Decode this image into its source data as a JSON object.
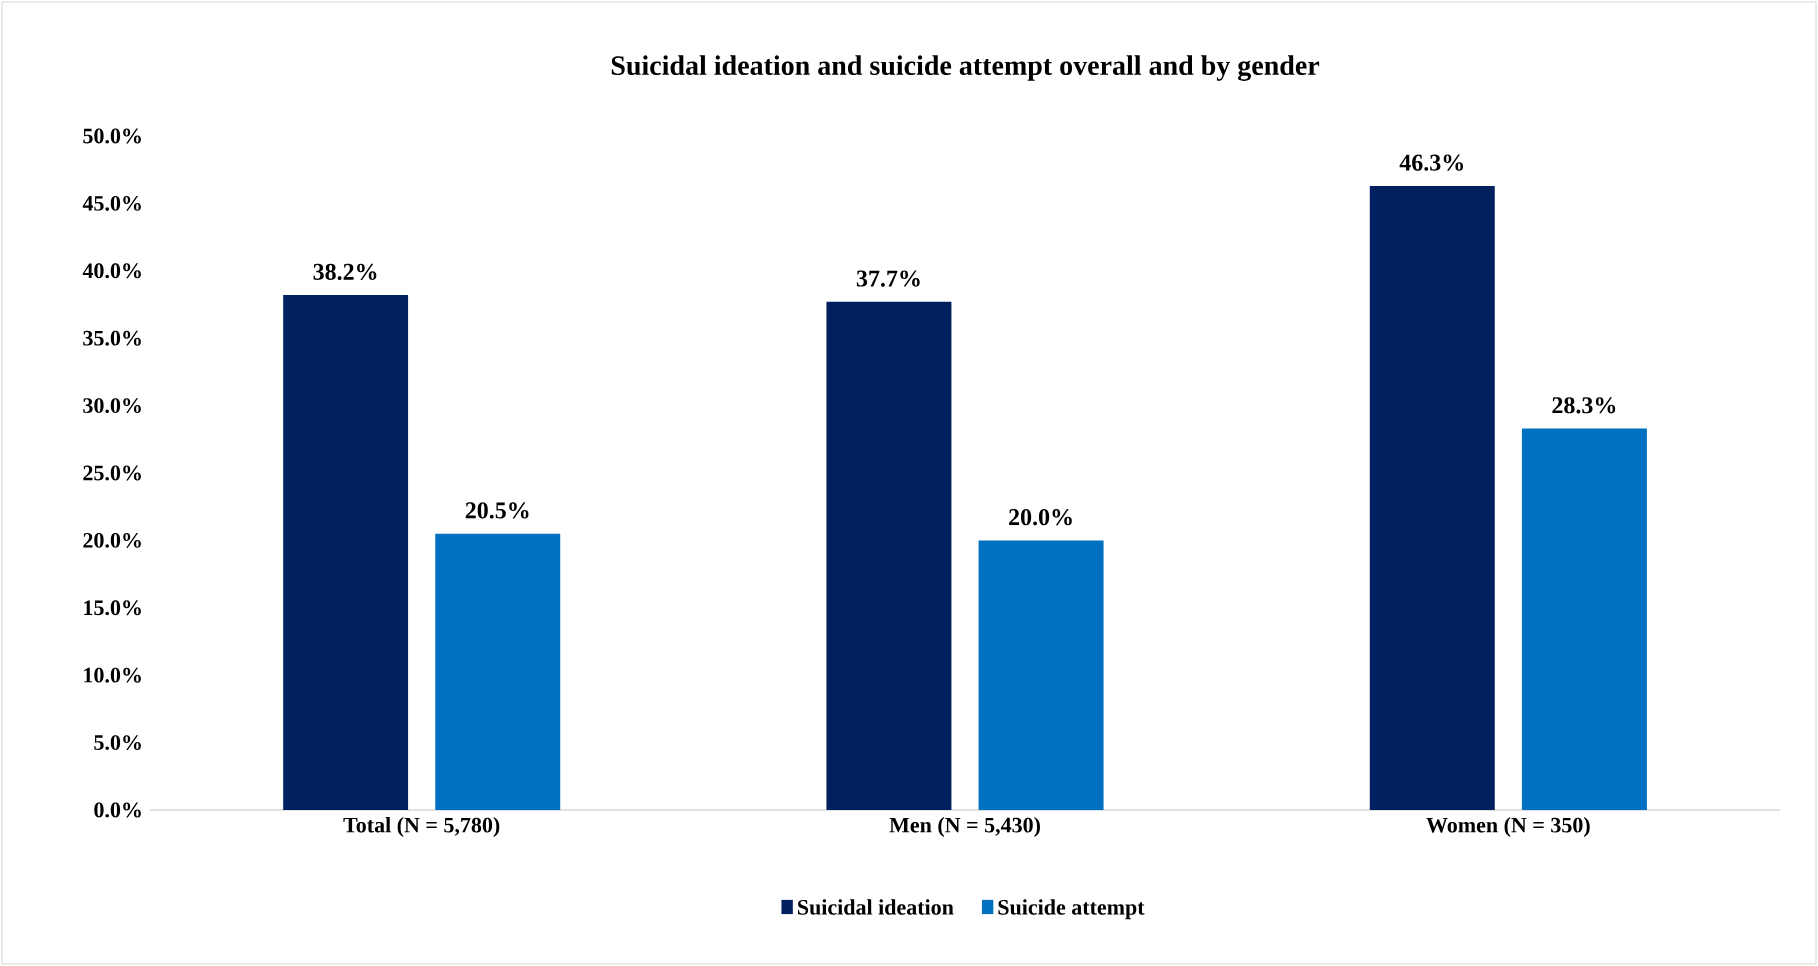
{
  "chart_data": {
    "type": "bar",
    "title": "Suicidal ideation and suicide attempt overall and by gender",
    "categories": [
      "Total (N = 5,780)",
      "Men (N = 5,430)",
      "Women (N = 350)"
    ],
    "series": [
      {
        "name": "Suicidal ideation",
        "color": "#002060",
        "values": [
          38.2,
          37.7,
          46.3
        ],
        "value_labels": [
          "38.2%",
          "37.7%",
          "46.3%"
        ]
      },
      {
        "name": "Suicide attempt",
        "color": "#0070c0",
        "values": [
          20.5,
          20.0,
          28.3
        ],
        "value_labels": [
          "20.5%",
          "20.0%",
          "28.3%"
        ]
      }
    ],
    "ylim": [
      0,
      50
    ],
    "yticks": [
      {
        "value": 0,
        "label": "0.0%"
      },
      {
        "value": 5,
        "label": "5.0%"
      },
      {
        "value": 10,
        "label": "10.0%"
      },
      {
        "value": 15,
        "label": "15.0%"
      },
      {
        "value": 20,
        "label": "20.0%"
      },
      {
        "value": 25,
        "label": "25.0%"
      },
      {
        "value": 30,
        "label": "30.0%"
      },
      {
        "value": 35,
        "label": "35.0%"
      },
      {
        "value": 40,
        "label": "40.0%"
      },
      {
        "value": 45,
        "label": "45.0%"
      },
      {
        "value": 50,
        "label": "50.0%"
      }
    ],
    "legend": "bottom"
  }
}
